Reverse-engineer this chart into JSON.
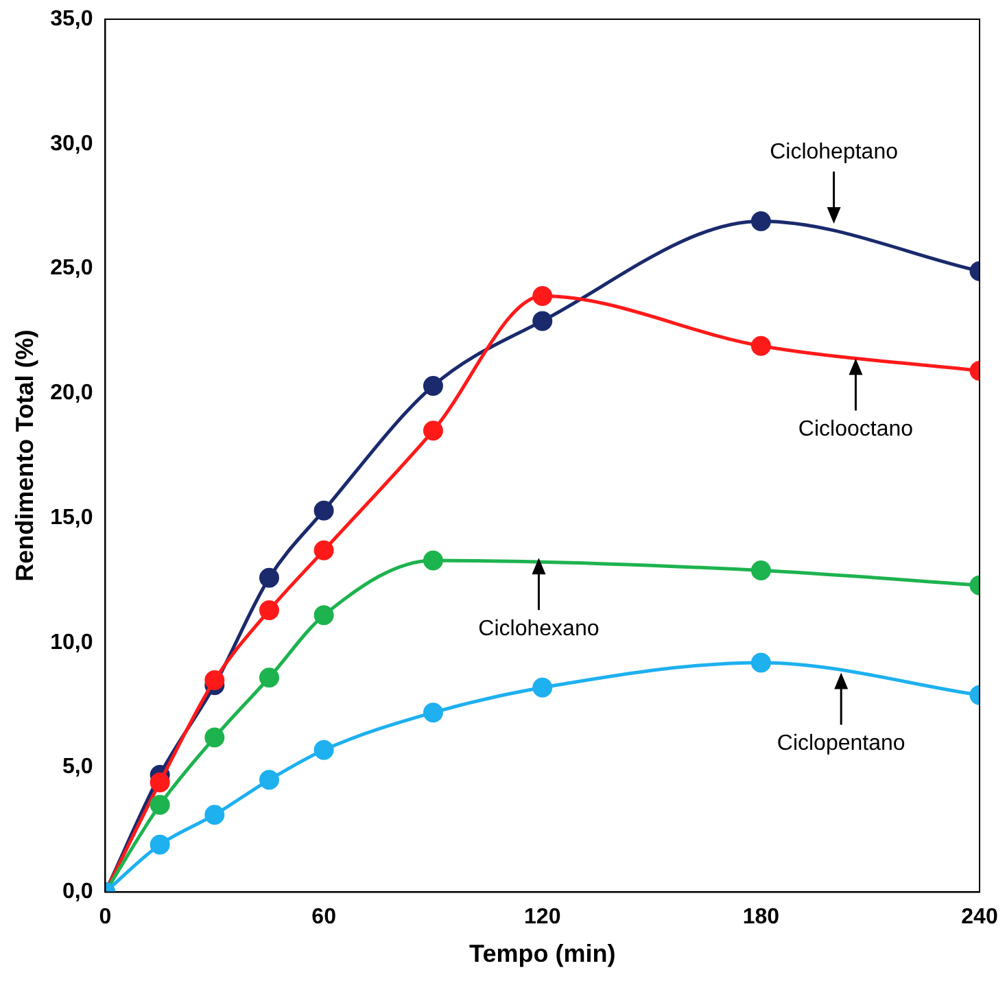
{
  "chart_data": {
    "type": "line",
    "xlabel": "Tempo (min)",
    "ylabel": "Rendimento Total (%)",
    "x": [
      0,
      15,
      30,
      45,
      60,
      90,
      120,
      180,
      240
    ],
    "series": [
      {
        "color": "#1a2a6c",
        "values": [
          0,
          4.7,
          8.3,
          12.6,
          15.3,
          20.3,
          22.9,
          26.9,
          24.9
        ]
      },
      {
        "color": "#ff1a1a",
        "values": [
          0,
          4.4,
          8.5,
          11.3,
          13.7,
          18.5,
          23.9,
          21.9,
          20.9
        ]
      },
      {
        "color": "#1db34f",
        "values": [
          0,
          3.5,
          6.2,
          8.6,
          11.1,
          13.3,
          null,
          12.9,
          12.3
        ]
      },
      {
        "color": "#1eb0ef",
        "values": [
          0,
          1.9,
          3.1,
          4.5,
          5.7,
          7.2,
          8.2,
          9.2,
          7.9
        ]
      }
    ],
    "xlim": [
      0,
      240
    ],
    "xticks": [
      0,
      60,
      120,
      180,
      240
    ],
    "ylim": [
      0,
      35
    ],
    "yticks": [
      {
        "value": 0,
        "label": "0,0"
      },
      {
        "value": 5,
        "label": "5,0"
      },
      {
        "value": 10,
        "label": "10,0"
      },
      {
        "value": 15,
        "label": "15,0"
      },
      {
        "value": 20,
        "label": "20,0"
      },
      {
        "value": 25,
        "label": "25,0"
      },
      {
        "value": 30,
        "label": "30,0"
      },
      {
        "value": 35,
        "label": "35,0"
      }
    ],
    "annotations": [
      {
        "text": "Cicloheptano",
        "x": 200,
        "y": 26.8
      },
      {
        "text": "Ciclooctano",
        "x": 206,
        "y": 21.4
      },
      {
        "text": "Ciclohexano",
        "x": 119,
        "y": 13.4
      },
      {
        "text": "Ciclopentano",
        "x": 202,
        "y": 8.8
      }
    ],
    "grid": false,
    "legend": false,
    "marker": "circle",
    "line_style": "solid"
  }
}
